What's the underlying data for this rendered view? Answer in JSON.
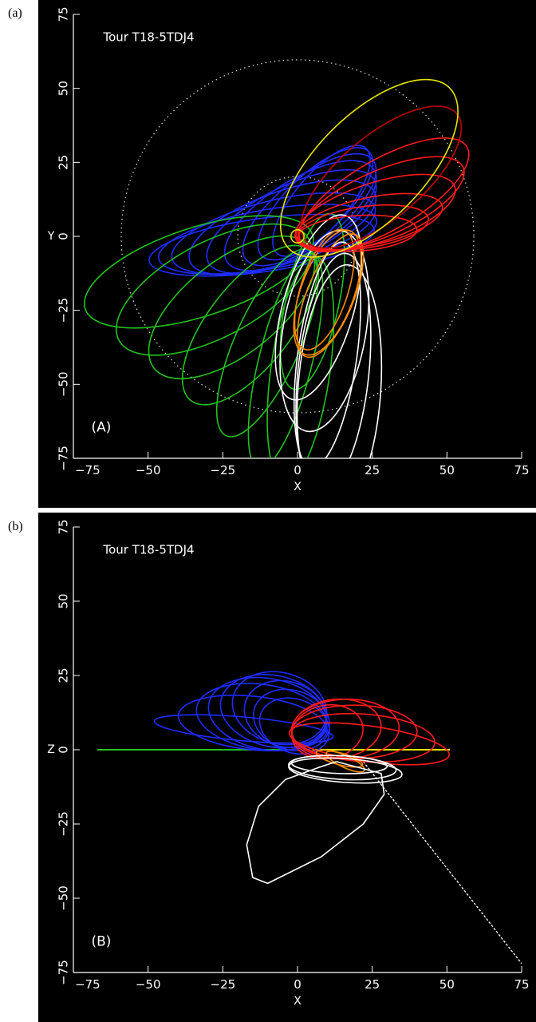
{
  "figure": {
    "panels": [
      {
        "letter": "(a)",
        "label": "(A)",
        "title": "Tour T18-5TDJ4",
        "xlabel": "X",
        "ylabel": "Y"
      },
      {
        "letter": "(b)",
        "label": "(B)",
        "title": "Tour T18-5TDJ4",
        "xlabel": "X",
        "ylabel": "Z"
      }
    ]
  },
  "colors": {
    "background": "#000000",
    "axis": "#ffffff",
    "blue": "#1e2cff",
    "green": "#22c21e",
    "red": "#ff1a1a",
    "darkred": "#c00000",
    "yellow": "#e8e400",
    "orange": "#ff8c00",
    "white": "#ffffff"
  },
  "chart_data": [
    {
      "type": "line",
      "subtype": "orbit-trajectories",
      "title": "Tour T18-5TDJ4",
      "xlabel": "X",
      "ylabel": "Y",
      "xlim": [
        -75,
        75
      ],
      "ylim": [
        -75,
        75
      ],
      "ticks": [
        -75,
        -50,
        -25,
        0,
        25,
        50,
        75
      ],
      "reference_circles": [
        {
          "r": 59
        },
        {
          "r": 20
        }
      ],
      "orbit_families": [
        {
          "color": "blue",
          "ellipses": [
            {
              "cx": -12,
              "cy": -3,
              "a": 38,
              "b": 9,
              "rot": 8
            },
            {
              "cx": -10,
              "cy": -1,
              "a": 37,
              "b": 10,
              "rot": 10
            },
            {
              "cx": -8,
              "cy": 1,
              "a": 35,
              "b": 11,
              "rot": 14
            },
            {
              "cx": -5,
              "cy": 3,
              "a": 33,
              "b": 12,
              "rot": 20
            },
            {
              "cx": -2,
              "cy": 5,
              "a": 31,
              "b": 12,
              "rot": 26
            },
            {
              "cx": 1,
              "cy": 7,
              "a": 29,
              "b": 12,
              "rot": 32
            },
            {
              "cx": 4,
              "cy": 9,
              "a": 27,
              "b": 11,
              "rot": 38
            },
            {
              "cx": 6,
              "cy": 11,
              "a": 25,
              "b": 10,
              "rot": 44
            },
            {
              "cx": 8,
              "cy": 12,
              "a": 23,
              "b": 9,
              "rot": 50
            }
          ]
        },
        {
          "color": "green",
          "ellipses": [
            {
              "cx": -33,
              "cy": -12,
              "a": 40,
              "b": 15,
              "rot": 18
            },
            {
              "cx": -28,
              "cy": -18,
              "a": 36,
              "b": 16,
              "rot": 28
            },
            {
              "cx": -22,
              "cy": -24,
              "a": 33,
              "b": 16,
              "rot": 38
            },
            {
              "cx": -16,
              "cy": -30,
              "a": 32,
              "b": 14,
              "rot": 52
            },
            {
              "cx": -10,
              "cy": -36,
              "a": 34,
              "b": 11,
              "rot": 66
            },
            {
              "cx": -4,
              "cy": -42,
              "a": 37,
              "b": 9,
              "rot": 76
            },
            {
              "cx": 1,
              "cy": -45,
              "a": 38,
              "b": 10,
              "rot": 82
            },
            {
              "cx": 5,
              "cy": -22,
              "a": 30,
              "b": 9,
              "rot": 78
            }
          ]
        },
        {
          "color": "white",
          "ellipses": [
            {
              "cx": 10,
              "cy": -40,
              "a": 38,
              "b": 10,
              "rot": 82
            },
            {
              "cx": 12,
              "cy": -46,
              "a": 40,
              "b": 12,
              "rot": 84
            },
            {
              "cx": 14,
              "cy": -52,
              "a": 42,
              "b": 14,
              "rot": 86
            },
            {
              "cx": 7,
              "cy": -24,
              "a": 32,
              "b": 12,
              "rot": 74
            },
            {
              "cx": 9,
              "cy": -32,
              "a": 34,
              "b": 14,
              "rot": 80
            }
          ]
        },
        {
          "color": "orange",
          "ellipses": [
            {
              "cx": 9,
              "cy": -18,
              "a": 21,
              "b": 8,
              "rot": 72
            },
            {
              "cx": 10,
              "cy": -19,
              "a": 22,
              "b": 9,
              "rot": 70
            },
            {
              "cx": 11,
              "cy": -20,
              "a": 22,
              "b": 8,
              "rot": 68
            }
          ]
        },
        {
          "color": "red",
          "ellipses": [
            {
              "cx": 22,
              "cy": 3,
              "a": 22,
              "b": 7,
              "rot": 8
            },
            {
              "cx": 24,
              "cy": 5,
              "a": 25,
              "b": 8,
              "rot": 12
            },
            {
              "cx": 26,
              "cy": 8,
              "a": 28,
              "b": 10,
              "rot": 18
            },
            {
              "cx": 28,
              "cy": 11,
              "a": 30,
              "b": 11,
              "rot": 24
            },
            {
              "cx": 29,
              "cy": 14,
              "a": 32,
              "b": 12,
              "rot": 30
            },
            {
              "cx": 20,
              "cy": 1,
              "a": 20,
              "b": 6,
              "rot": 4
            }
          ]
        },
        {
          "color": "darkred",
          "ellipses": [
            {
              "cx": 28,
              "cy": 20,
              "a": 33,
              "b": 14,
              "rot": 40
            }
          ]
        },
        {
          "color": "yellow",
          "ellipses": [
            {
              "cx": 24,
              "cy": 23,
              "a": 38,
              "b": 18,
              "rot": 45
            },
            {
              "cx": 0,
              "cy": 0,
              "a": 2.2,
              "b": 2.2,
              "rot": 0
            }
          ]
        }
      ]
    },
    {
      "type": "line",
      "subtype": "orbit-trajectories",
      "title": "Tour T18-5TDJ4",
      "xlabel": "X",
      "ylabel": "Z",
      "xlim": [
        -75,
        75
      ],
      "ylim": [
        -75,
        75
      ],
      "ticks": [
        -75,
        -50,
        -25,
        0,
        25,
        50,
        75
      ],
      "equatorial_lines": [
        {
          "color": "green",
          "x": [
            -67,
            -5
          ]
        },
        {
          "color": "yellow",
          "x": [
            5,
            51
          ]
        }
      ],
      "diagonal_line": {
        "color": "white",
        "x": [
          22,
          75
        ],
        "y": [
          -4,
          -72
        ]
      },
      "orbit_families": [
        {
          "color": "blue",
          "ellipses": [
            {
              "cx": -18,
              "cy": 7,
              "a": 30,
              "b": 4,
              "rot": -5
            },
            {
              "cx": -15,
              "cy": 9,
              "a": 25,
              "b": 9,
              "rot": -6
            },
            {
              "cx": -12,
              "cy": 11,
              "a": 22,
              "b": 11,
              "rot": -8
            },
            {
              "cx": -10,
              "cy": 12,
              "a": 20,
              "b": 12,
              "rot": -10
            },
            {
              "cx": -8,
              "cy": 13,
              "a": 18,
              "b": 12,
              "rot": -12
            },
            {
              "cx": -6,
              "cy": 14,
              "a": 16,
              "b": 12,
              "rot": -14
            },
            {
              "cx": -4,
              "cy": 12,
              "a": 14,
              "b": 11,
              "rot": -16
            },
            {
              "cx": -2,
              "cy": 10,
              "a": 13,
              "b": 10,
              "rot": -18
            },
            {
              "cx": -1,
              "cy": 8,
              "a": 12,
              "b": 9,
              "rot": -20
            }
          ]
        },
        {
          "color": "red",
          "ellipses": [
            {
              "cx": 10,
              "cy": 6,
              "a": 12,
              "b": 9,
              "rot": 10
            },
            {
              "cx": 13,
              "cy": 7,
              "a": 15,
              "b": 10,
              "rot": 6
            },
            {
              "cx": 16,
              "cy": 7,
              "a": 18,
              "b": 10,
              "rot": 2
            },
            {
              "cx": 19,
              "cy": 6,
              "a": 21,
              "b": 9,
              "rot": 0
            },
            {
              "cx": 22,
              "cy": 4,
              "a": 24,
              "b": 8,
              "rot": -4
            },
            {
              "cx": 24,
              "cy": 2,
              "a": 27,
              "b": 6,
              "rot": -8
            }
          ]
        },
        {
          "color": "orange",
          "ellipses": [
            {
              "cx": 14,
              "cy": -3,
              "a": 8,
              "b": 2,
              "rot": -15
            },
            {
              "cx": 16,
              "cy": -4,
              "a": 7,
              "b": 2,
              "rot": -25
            }
          ]
        },
        {
          "color": "white",
          "ellipses": [
            {
              "cx": 14,
              "cy": -5,
              "a": 16,
              "b": 3,
              "rot": -2
            },
            {
              "cx": 15,
              "cy": -6,
              "a": 18,
              "b": 4,
              "rot": -3
            },
            {
              "cx": 16,
              "cy": -7,
              "a": 19,
              "b": 4,
              "rot": -4
            }
          ]
        }
      ],
      "paths": [
        {
          "color": "white",
          "points": [
            [
              13,
              -4
            ],
            [
              28,
              -8
            ],
            [
              29,
              -15
            ],
            [
              22,
              -25
            ],
            [
              8,
              -36
            ],
            [
              -10,
              -45
            ],
            [
              -15,
              -43
            ],
            [
              -17,
              -32
            ],
            [
              -13,
              -19
            ],
            [
              -4,
              -10
            ],
            [
              7,
              -6
            ],
            [
              13,
              -4
            ]
          ]
        }
      ]
    }
  ]
}
